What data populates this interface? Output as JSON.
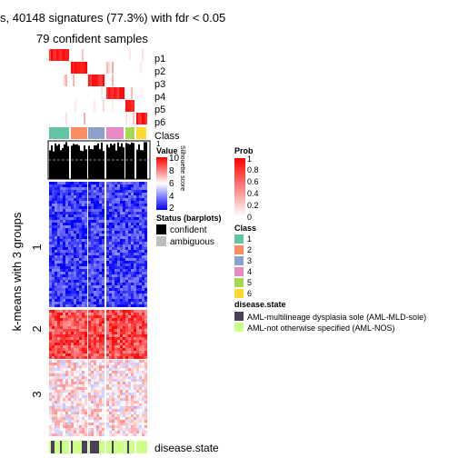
{
  "title": "s, 40148 signatures (77.3%) with fdr < 0.05",
  "subtitle": "79 confident samples",
  "row_title": "k-means with 3 groups",
  "annotation_labels": {
    "prob_rows": [
      "p1",
      "p2",
      "p3",
      "p4",
      "p5",
      "p6"
    ],
    "class": "Class",
    "silhouette": "Silhouette score",
    "silhouette_ticks": [
      "1",
      "0"
    ],
    "disease_state": "disease.state"
  },
  "row_groups": [
    "1",
    "2",
    "3"
  ],
  "legends": {
    "value": {
      "title": "Value",
      "ticks": [
        "10",
        "8",
        "6",
        "4",
        "2"
      ],
      "colors": [
        "#FF0000",
        "#FFFFFF",
        "#0000FF"
      ]
    },
    "status": {
      "title": "Status (barplots)",
      "items": [
        {
          "label": "confident",
          "color": "#000000"
        },
        {
          "label": "ambiguous",
          "color": "#BEBEBE"
        }
      ]
    },
    "prob": {
      "title": "Prob",
      "ticks": [
        "1",
        "0.8",
        "0.6",
        "0.4",
        "0.2",
        "0"
      ],
      "colors": [
        "#FF0000",
        "#FFFFFF"
      ]
    },
    "class": {
      "title": "Class",
      "items": [
        {
          "label": "1",
          "color": "#66C2A5"
        },
        {
          "label": "2",
          "color": "#FC8D62"
        },
        {
          "label": "3",
          "color": "#8DA0CB"
        },
        {
          "label": "4",
          "color": "#E78AC3"
        },
        {
          "label": "5",
          "color": "#A6D854"
        },
        {
          "label": "6",
          "color": "#FFD92F"
        }
      ]
    },
    "disease": {
      "title": "disease.state",
      "items": [
        {
          "label": "AML-multilineage dysplasia sole (AML-MLD-sole)",
          "color": "#4B3F5C"
        },
        {
          "label": "AML-not otherwise specified (AML-NOS)",
          "color": "#CCFF88"
        }
      ]
    }
  },
  "chart_data": {
    "type": "heatmap",
    "title": "s, 40148 signatures (77.3%) with fdr < 0.05",
    "subtitle": "79 confident samples",
    "row_title": "k-means with 3 groups",
    "column_classes": [
      "1",
      "2",
      "3",
      "4",
      "5",
      "6"
    ],
    "row_groups": [
      "1",
      "2",
      "3"
    ],
    "value_range": [
      2,
      10
    ],
    "prob_range": [
      0,
      1
    ],
    "silhouette_range": [
      0,
      1
    ],
    "color_scale_value": {
      "low": "#0000FF",
      "mid": "#FFFFFF",
      "high": "#FF0000"
    }
  }
}
